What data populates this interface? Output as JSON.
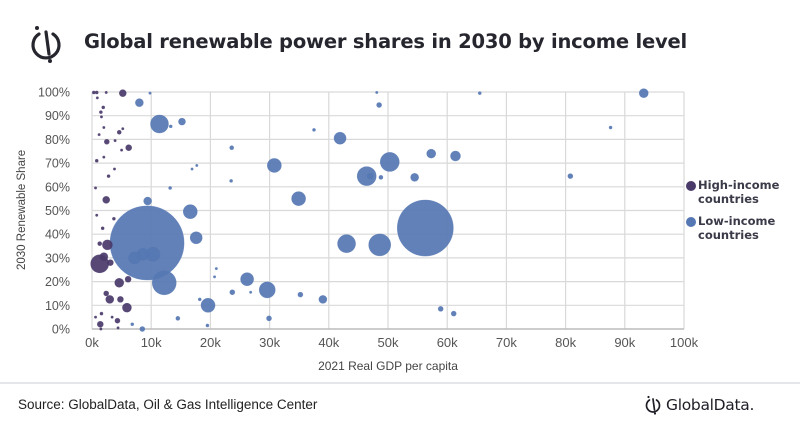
{
  "header": {
    "title": "Global renewable power shares in 2030 by income level"
  },
  "footer": {
    "source": "Source: GlobalData, Oil & Gas Intelligence Center",
    "brand": "GlobalData."
  },
  "colors": {
    "high_income": "#4a3a6a",
    "low_income": "#5577b3",
    "grid": "#d9d9d9",
    "axis_text": "#555555"
  },
  "chart_data": {
    "type": "scatter",
    "subtype": "bubble",
    "title": "Global renewable power shares in 2030 by income level",
    "xlabel": "2021 Real GDP per capita",
    "ylabel": "2030 Renewable Share",
    "xlim": [
      0,
      100
    ],
    "ylim": [
      0,
      100
    ],
    "x_unit": "k",
    "y_unit": "%",
    "grid": true,
    "legend_position": "right",
    "x_ticks": [
      "0k",
      "10k",
      "20k",
      "30k",
      "40k",
      "50k",
      "60k",
      "70k",
      "80k",
      "90k",
      "100k"
    ],
    "y_ticks": [
      "0%",
      "10%",
      "20%",
      "30%",
      "40%",
      "50%",
      "60%",
      "70%",
      "80%",
      "90%",
      "100%"
    ],
    "series": [
      {
        "name": "High-income countries",
        "legend_label": "High-income\ncountries",
        "color_key": "high_income",
        "points": [
          {
            "x": 0.3,
            "y": 99.8,
            "size": 1.5
          },
          {
            "x": 0.8,
            "y": 99.8,
            "size": 1.5
          },
          {
            "x": 2.4,
            "y": 99.8,
            "size": 1
          },
          {
            "x": 5.2,
            "y": 99.5,
            "size": 3.5
          },
          {
            "x": 0.9,
            "y": 97.5,
            "size": 1
          },
          {
            "x": 1.9,
            "y": 93.5,
            "size": 1.5
          },
          {
            "x": 1.5,
            "y": 91.5,
            "size": 1.5
          },
          {
            "x": 1.6,
            "y": 89.5,
            "size": 1
          },
          {
            "x": 2.0,
            "y": 85.0,
            "size": 1
          },
          {
            "x": 4.6,
            "y": 83.0,
            "size": 2
          },
          {
            "x": 5.2,
            "y": 84.5,
            "size": 1
          },
          {
            "x": 1.2,
            "y": 82.0,
            "size": 1
          },
          {
            "x": 2.5,
            "y": 79.0,
            "size": 2.5
          },
          {
            "x": 3.9,
            "y": 79.5,
            "size": 1
          },
          {
            "x": 5.0,
            "y": 75.5,
            "size": 1
          },
          {
            "x": 6.2,
            "y": 76.5,
            "size": 3
          },
          {
            "x": 2.0,
            "y": 72.5,
            "size": 1
          },
          {
            "x": 3.8,
            "y": 67.5,
            "size": 1
          },
          {
            "x": 0.8,
            "y": 71.0,
            "size": 1.5
          },
          {
            "x": 2.8,
            "y": 64.5,
            "size": 1.5
          },
          {
            "x": 0.6,
            "y": 59.5,
            "size": 1
          },
          {
            "x": 2.4,
            "y": 54.5,
            "size": 3.5
          },
          {
            "x": 0.8,
            "y": 48.0,
            "size": 1
          },
          {
            "x": 3.7,
            "y": 46.5,
            "size": 1.5
          },
          {
            "x": 1.8,
            "y": 42.5,
            "size": 1.5
          },
          {
            "x": 1.3,
            "y": 36.0,
            "size": 2
          },
          {
            "x": 2.6,
            "y": 35.5,
            "size": 5
          },
          {
            "x": 2.0,
            "y": 30.5,
            "size": 4
          },
          {
            "x": 1.3,
            "y": 27.5,
            "size": 9
          },
          {
            "x": 3.1,
            "y": 28.0,
            "size": 3
          },
          {
            "x": 4.6,
            "y": 19.5,
            "size": 4.5
          },
          {
            "x": 6.1,
            "y": 21.0,
            "size": 3
          },
          {
            "x": 2.4,
            "y": 15.0,
            "size": 2.5
          },
          {
            "x": 3.0,
            "y": 12.5,
            "size": 4
          },
          {
            "x": 4.8,
            "y": 12.5,
            "size": 3
          },
          {
            "x": 5.9,
            "y": 9.0,
            "size": 4.5
          },
          {
            "x": 0.6,
            "y": 5.0,
            "size": 1
          },
          {
            "x": 1.6,
            "y": 6.5,
            "size": 1.5
          },
          {
            "x": 4.3,
            "y": 3.5,
            "size": 2.5
          },
          {
            "x": 3.4,
            "y": 5.0,
            "size": 1
          },
          {
            "x": 1.4,
            "y": 2.0,
            "size": 3
          },
          {
            "x": 4.4,
            "y": 0.5,
            "size": 1
          },
          {
            "x": 1.5,
            "y": 0.0,
            "size": 1
          }
        ]
      },
      {
        "name": "Low-income countries",
        "legend_label": "Low-income\ncountries",
        "color_key": "low_income",
        "points": [
          {
            "x": 9.3,
            "y": 36.3,
            "size": 37
          },
          {
            "x": 56.3,
            "y": 42.6,
            "size": 28
          },
          {
            "x": 11.4,
            "y": 86.5,
            "size": 9
          },
          {
            "x": 8.0,
            "y": 95.5,
            "size": 4
          },
          {
            "x": 13.3,
            "y": 85.5,
            "size": 1.5
          },
          {
            "x": 15.2,
            "y": 87.5,
            "size": 3.5
          },
          {
            "x": 9.8,
            "y": 99.5,
            "size": 1
          },
          {
            "x": 16.9,
            "y": 67.5,
            "size": 1
          },
          {
            "x": 17.7,
            "y": 69.0,
            "size": 1
          },
          {
            "x": 13.2,
            "y": 59.5,
            "size": 1.5
          },
          {
            "x": 9.4,
            "y": 54.0,
            "size": 4
          },
          {
            "x": 16.6,
            "y": 49.5,
            "size": 7
          },
          {
            "x": 17.6,
            "y": 38.5,
            "size": 6
          },
          {
            "x": 10.3,
            "y": 31.5,
            "size": 7
          },
          {
            "x": 12.2,
            "y": 19.5,
            "size": 12
          },
          {
            "x": 8.6,
            "y": 31.5,
            "size": 6
          },
          {
            "x": 7.2,
            "y": 30.0,
            "size": 6
          },
          {
            "x": 14.5,
            "y": 4.5,
            "size": 2
          },
          {
            "x": 18.2,
            "y": 12.5,
            "size": 1.5
          },
          {
            "x": 19.6,
            "y": 10.0,
            "size": 7
          },
          {
            "x": 19.5,
            "y": 1.5,
            "size": 1.5
          },
          {
            "x": 8.5,
            "y": 0.0,
            "size": 2.5
          },
          {
            "x": 6.8,
            "y": 2.0,
            "size": 1.5
          },
          {
            "x": 21.0,
            "y": 25.5,
            "size": 1
          },
          {
            "x": 20.7,
            "y": 22.0,
            "size": 1
          },
          {
            "x": 23.6,
            "y": 76.5,
            "size": 2
          },
          {
            "x": 23.5,
            "y": 62.5,
            "size": 1.5
          },
          {
            "x": 26.2,
            "y": 21.0,
            "size": 6.5
          },
          {
            "x": 23.7,
            "y": 15.5,
            "size": 2.5
          },
          {
            "x": 26.8,
            "y": 15.5,
            "size": 1
          },
          {
            "x": 29.6,
            "y": 16.5,
            "size": 8
          },
          {
            "x": 29.9,
            "y": 4.5,
            "size": 2.5
          },
          {
            "x": 30.8,
            "y": 69.0,
            "size": 7
          },
          {
            "x": 34.9,
            "y": 55.0,
            "size": 7
          },
          {
            "x": 35.2,
            "y": 14.5,
            "size": 2.5
          },
          {
            "x": 37.5,
            "y": 84.0,
            "size": 1.5
          },
          {
            "x": 39.0,
            "y": 12.5,
            "size": 4
          },
          {
            "x": 41.9,
            "y": 80.5,
            "size": 6
          },
          {
            "x": 43.0,
            "y": 36.0,
            "size": 9
          },
          {
            "x": 46.4,
            "y": 64.5,
            "size": 9.5
          },
          {
            "x": 47.0,
            "y": 64.5,
            "size": 3
          },
          {
            "x": 48.6,
            "y": 35.5,
            "size": 11
          },
          {
            "x": 48.8,
            "y": 64.0,
            "size": 2
          },
          {
            "x": 48.1,
            "y": 99.8,
            "size": 1
          },
          {
            "x": 48.5,
            "y": 94.5,
            "size": 2.5
          },
          {
            "x": 50.3,
            "y": 70.5,
            "size": 9.5
          },
          {
            "x": 54.5,
            "y": 64.0,
            "size": 4
          },
          {
            "x": 57.3,
            "y": 74.0,
            "size": 4.5
          },
          {
            "x": 58.9,
            "y": 8.5,
            "size": 2.5
          },
          {
            "x": 61.4,
            "y": 73.0,
            "size": 5
          },
          {
            "x": 61.1,
            "y": 6.5,
            "size": 2.5
          },
          {
            "x": 65.5,
            "y": 99.5,
            "size": 1.5
          },
          {
            "x": 80.8,
            "y": 64.5,
            "size": 2.5
          },
          {
            "x": 87.6,
            "y": 85.0,
            "size": 1.5
          },
          {
            "x": 93.2,
            "y": 99.5,
            "size": 4.5
          }
        ]
      }
    ]
  }
}
